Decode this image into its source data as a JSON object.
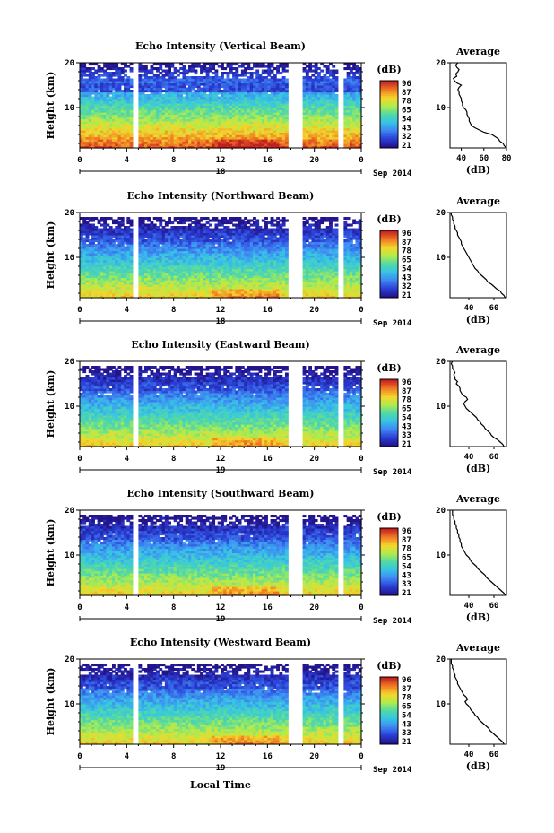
{
  "chart_data": [
    {
      "type": "heatmap",
      "title": "Echo Intensity (Vertical Beam)",
      "ylabel": "Height (km)",
      "ylim": [
        1,
        20
      ],
      "xlim": [
        0,
        24
      ],
      "x_ticks": [
        "0",
        "4",
        "8",
        "12",
        "16",
        "20",
        "0"
      ],
      "y_ticks": [
        "20",
        "10"
      ],
      "date_label": "18",
      "month_label": "Sep 2014",
      "colorbar": {
        "unit": "(dB)",
        "ticks": [
          "96",
          "87",
          "78",
          "65",
          "54",
          "43",
          "32",
          "21"
        ]
      },
      "average": {
        "title": "Average",
        "xlabel": "(dB)",
        "x_ticks": [
          "40",
          "60",
          "80"
        ],
        "xlim": [
          30,
          80
        ],
        "height": [
          1,
          1.5,
          2,
          2.5,
          3,
          3.5,
          4,
          4.5,
          5,
          5.5,
          6,
          6.5,
          7,
          7.5,
          8,
          8.5,
          9,
          9.5,
          10,
          10.5,
          11,
          11.5,
          12,
          12.5,
          13,
          13.5,
          14,
          14.5,
          15,
          15.5,
          16,
          16.5,
          17,
          17.5,
          18,
          18.5,
          19,
          19.5,
          20
        ],
        "db": [
          80,
          78,
          77,
          74,
          73,
          70,
          67,
          60,
          56,
          52,
          49,
          48,
          47,
          47,
          46,
          45,
          45,
          44,
          42,
          41,
          41,
          40,
          40,
          39,
          38,
          38,
          37,
          38,
          40,
          36,
          34,
          33,
          36,
          35,
          37,
          38,
          36,
          35,
          37
        ]
      }
    },
    {
      "type": "heatmap",
      "title": "Echo Intensity (Northward Beam)",
      "ylabel": "Height (km)",
      "ylim": [
        1,
        20
      ],
      "xlim": [
        0,
        24
      ],
      "x_ticks": [
        "0",
        "4",
        "8",
        "12",
        "16",
        "20",
        "0"
      ],
      "y_ticks": [
        "20",
        "10"
      ],
      "date_label": "18",
      "month_label": "Sep 2014",
      "colorbar": {
        "unit": "(dB)",
        "ticks": [
          "96",
          "87",
          "78",
          "65",
          "54",
          "43",
          "32",
          "21"
        ]
      },
      "average": {
        "title": "Average",
        "xlabel": "(dB)",
        "x_ticks": [
          "40",
          "60"
        ],
        "xlim": [
          25,
          70
        ],
        "height": [
          1,
          1.5,
          2,
          2.5,
          3,
          3.5,
          4,
          4.5,
          5,
          5.5,
          6,
          6.5,
          7,
          7.5,
          8,
          8.5,
          9,
          9.5,
          10,
          10.5,
          11,
          11.5,
          12,
          12.5,
          13,
          13.5,
          14,
          14.5,
          15,
          15.5,
          16,
          16.5,
          17,
          17.5,
          18,
          18.5,
          19,
          19.5,
          20
        ],
        "db": [
          69,
          68,
          66,
          65,
          62,
          60,
          58,
          55,
          54,
          52,
          50,
          48,
          47,
          45,
          44,
          43,
          42,
          41,
          40,
          39,
          38,
          37,
          36,
          35,
          34,
          34,
          33,
          32,
          31,
          31,
          30,
          29,
          29,
          28,
          28,
          27,
          27,
          26,
          26
        ]
      }
    },
    {
      "type": "heatmap",
      "title": "Echo Intensity (Eastward Beam)",
      "ylabel": "Height (km)",
      "ylim": [
        1,
        20
      ],
      "xlim": [
        0,
        24
      ],
      "x_ticks": [
        "0",
        "4",
        "8",
        "12",
        "16",
        "20",
        "0"
      ],
      "y_ticks": [
        "20",
        "10"
      ],
      "date_label": "19",
      "month_label": "Sep 2014",
      "colorbar": {
        "unit": "(dB)",
        "ticks": [
          "96",
          "87",
          "78",
          "65",
          "54",
          "43",
          "33",
          "21"
        ]
      },
      "average": {
        "title": "Average",
        "xlabel": "(dB)",
        "x_ticks": [
          "40",
          "60"
        ],
        "xlim": [
          25,
          70
        ],
        "height": [
          1,
          1.5,
          2,
          2.5,
          3,
          3.5,
          4,
          4.5,
          5,
          5.5,
          6,
          6.5,
          7,
          7.5,
          8,
          8.5,
          9,
          9.5,
          10,
          10.5,
          11,
          11.5,
          12,
          12.5,
          13,
          13.5,
          14,
          14.5,
          15,
          15.5,
          16,
          16.5,
          17,
          17.5,
          18,
          18.5,
          19,
          19.5,
          20
        ],
        "db": [
          68,
          67,
          65,
          63,
          60,
          58,
          57,
          55,
          53,
          52,
          50,
          49,
          47,
          46,
          44,
          42,
          40,
          38,
          37,
          36,
          37,
          39,
          38,
          35,
          34,
          33,
          33,
          32,
          30,
          31,
          29,
          29,
          28,
          29,
          28,
          27,
          27,
          26,
          27
        ]
      }
    },
    {
      "type": "heatmap",
      "title": "Echo Intensity (Southward Beam)",
      "ylabel": "Height (km)",
      "ylim": [
        1,
        20
      ],
      "xlim": [
        0,
        24
      ],
      "x_ticks": [
        "0",
        "4",
        "8",
        "12",
        "16",
        "20",
        "0"
      ],
      "y_ticks": [
        "20",
        "10"
      ],
      "date_label": "19",
      "month_label": "Sep 2014",
      "colorbar": {
        "unit": "(dB)",
        "ticks": [
          "96",
          "87",
          "78",
          "65",
          "54",
          "43",
          "33",
          "21"
        ]
      },
      "average": {
        "title": "Average",
        "xlabel": "(dB)",
        "x_ticks": [
          "40",
          "60"
        ],
        "xlim": [
          25,
          70
        ],
        "height": [
          1,
          1.5,
          2,
          2.5,
          3,
          3.5,
          4,
          4.5,
          5,
          5.5,
          6,
          6.5,
          7,
          7.5,
          8,
          8.5,
          9,
          9.5,
          10,
          10.5,
          11,
          11.5,
          12,
          12.5,
          13,
          13.5,
          14,
          14.5,
          15,
          15.5,
          16,
          16.5,
          17,
          17.5,
          18,
          18.5,
          19,
          19.5,
          20
        ],
        "db": [
          69,
          68,
          66,
          64,
          62,
          60,
          58,
          56,
          54,
          53,
          51,
          49,
          47,
          46,
          44,
          42,
          41,
          40,
          38,
          37,
          36,
          35,
          34,
          34,
          33,
          33,
          32,
          32,
          31,
          31,
          30,
          30,
          29,
          29,
          28,
          28,
          27,
          27,
          27
        ]
      }
    },
    {
      "type": "heatmap",
      "title": "Echo Intensity (Westward Beam)",
      "ylabel": "Height (km)",
      "ylim": [
        1,
        20
      ],
      "xlim": [
        0,
        24
      ],
      "x_ticks": [
        "0",
        "4",
        "8",
        "12",
        "16",
        "20",
        "0"
      ],
      "y_ticks": [
        "20",
        "10"
      ],
      "date_label": "19",
      "month_label": "Sep 2014",
      "colorbar": {
        "unit": "(dB)",
        "ticks": [
          "96",
          "87",
          "78",
          "65",
          "54",
          "43",
          "33",
          "21"
        ]
      },
      "average": {
        "title": "Average",
        "xlabel": "(dB)",
        "x_ticks": [
          "40",
          "60"
        ],
        "xlim": [
          25,
          70
        ],
        "height": [
          1,
          1.5,
          2,
          2.5,
          3,
          3.5,
          4,
          4.5,
          5,
          5.5,
          6,
          6.5,
          7,
          7.5,
          8,
          8.5,
          9,
          9.5,
          10,
          10.5,
          11,
          11.5,
          12,
          12.5,
          13,
          13.5,
          14,
          14.5,
          15,
          15.5,
          16,
          16.5,
          17,
          17.5,
          18,
          18.5,
          19,
          19.5,
          20
        ],
        "db": [
          68,
          67,
          65,
          63,
          61,
          59,
          57,
          56,
          54,
          52,
          50,
          48,
          47,
          45,
          44,
          42,
          41,
          40,
          38,
          37,
          39,
          38,
          36,
          35,
          34,
          33,
          32,
          31,
          31,
          30,
          29,
          29,
          28,
          28,
          27,
          27,
          26,
          26,
          26
        ]
      }
    }
  ],
  "bottom_xlabel": "Local Time",
  "colors": {
    "scale": [
      "#23148c",
      "#2a3fd6",
      "#3f86f2",
      "#36c4e6",
      "#52d9a5",
      "#b2ec4a",
      "#f5d52b",
      "#f07a25",
      "#c41e20"
    ]
  }
}
